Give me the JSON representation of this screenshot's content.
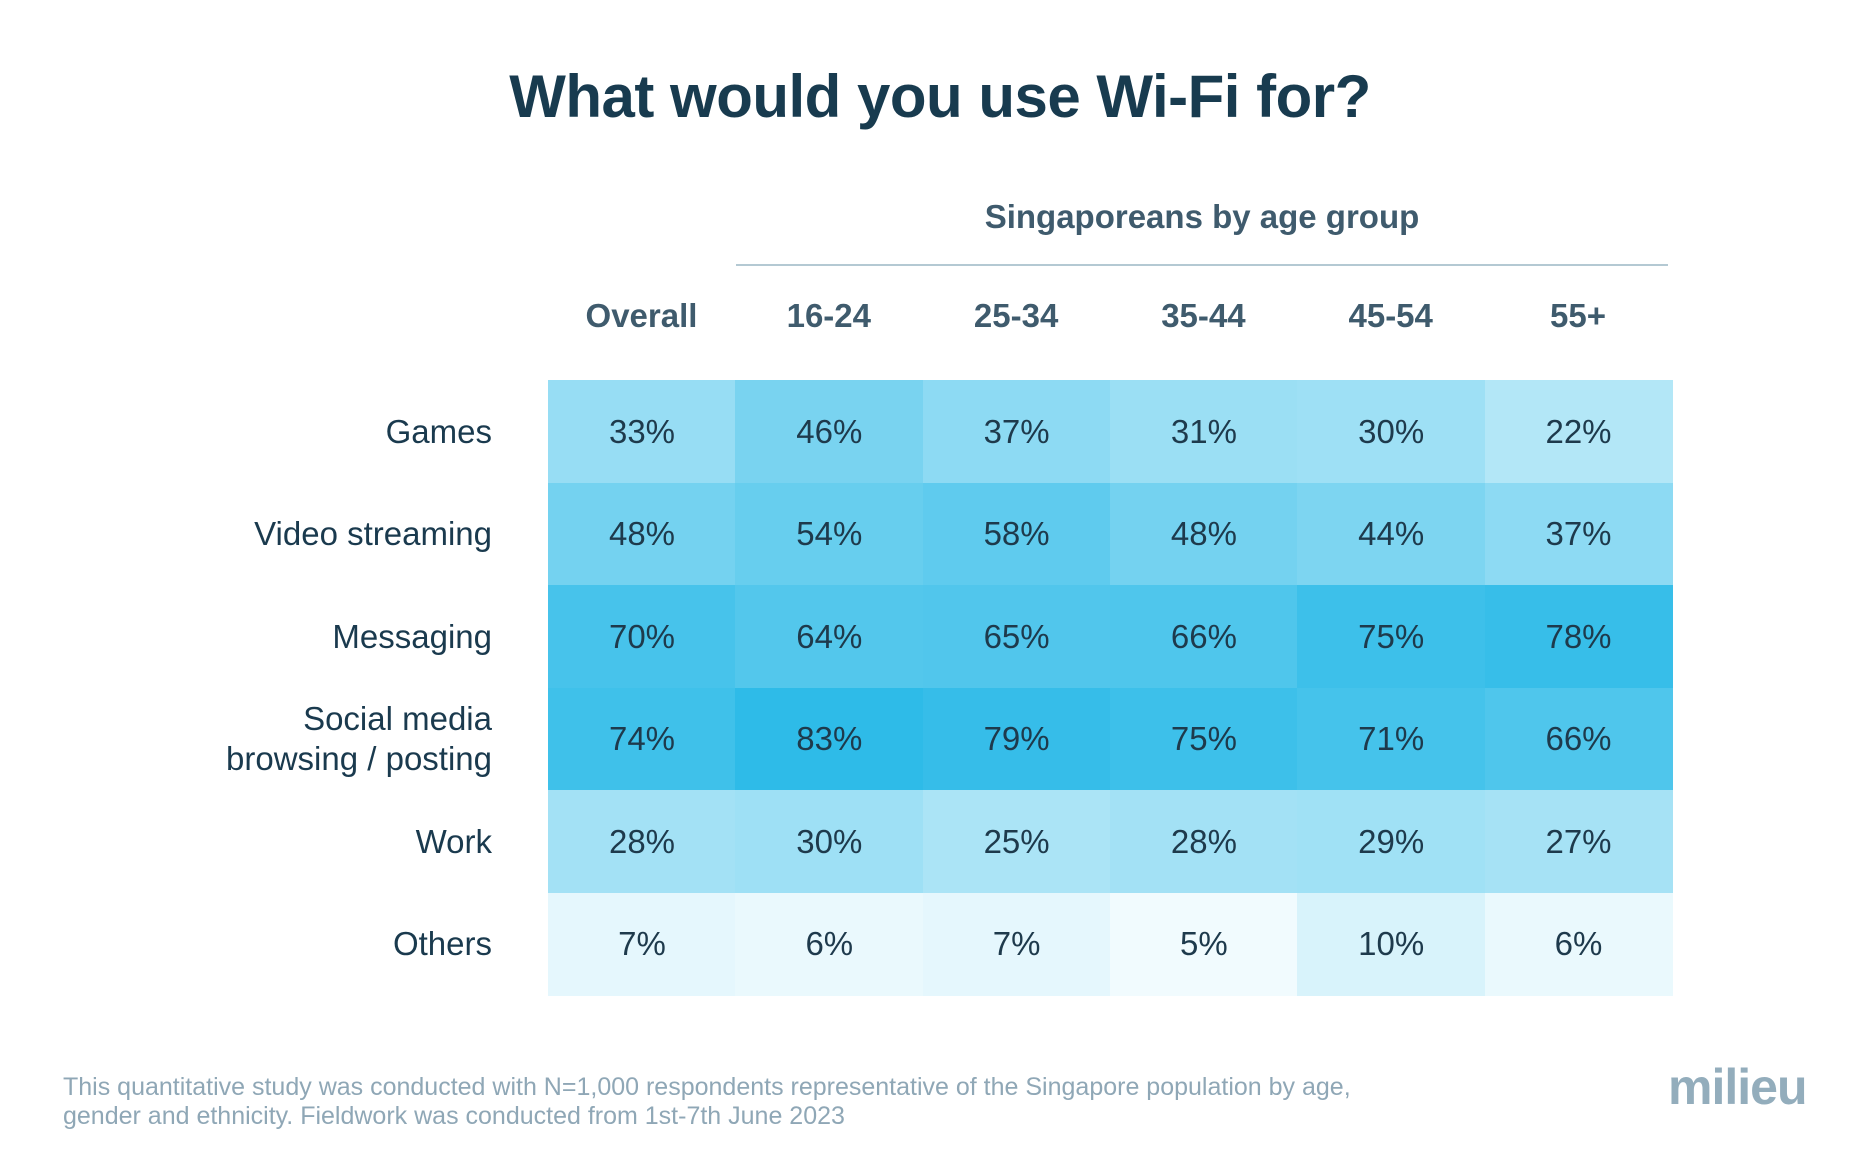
{
  "title": "What would you use Wi-Fi for?",
  "group_label": "Singaporeans by age group",
  "footnote_line1": "This quantitative study was conducted with N=1,000 respondents representative of the Singapore population by age,",
  "footnote_line2": "gender and ethnicity. Fieldwork was conducted from 1st-7th June 2023",
  "logo": "milieu",
  "colors": {
    "cell_low": "#f1fbfe",
    "cell_high": "#2ebbe8"
  },
  "chart_data": {
    "type": "heatmap",
    "title": "What would you use Wi-Fi for?",
    "column_group": "Singaporeans by age group",
    "columns": [
      "Overall",
      "16-24",
      "25-34",
      "35-44",
      "45-54",
      "55+"
    ],
    "rows": [
      {
        "label": "Games",
        "values": [
          33,
          46,
          37,
          31,
          30,
          22
        ]
      },
      {
        "label": "Video streaming",
        "values": [
          48,
          54,
          58,
          48,
          44,
          37
        ]
      },
      {
        "label": "Messaging",
        "values": [
          70,
          64,
          65,
          66,
          75,
          78
        ]
      },
      {
        "label": "Social media browsing / posting",
        "label_lines": [
          "Social media",
          "browsing / posting"
        ],
        "values": [
          74,
          83,
          79,
          75,
          71,
          66
        ]
      },
      {
        "label": "Work",
        "values": [
          28,
          30,
          25,
          28,
          29,
          27
        ]
      },
      {
        "label": "Others",
        "values": [
          7,
          6,
          7,
          5,
          10,
          6
        ]
      }
    ],
    "value_suffix": "%"
  }
}
